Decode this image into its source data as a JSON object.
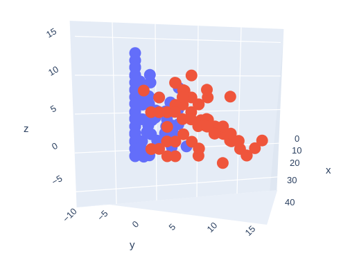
{
  "chart_data": {
    "type": "scatter",
    "dimension": "3d",
    "title": "",
    "xlabel": "x",
    "ylabel": "y",
    "zlabel": "z",
    "x_ticks": [
      "0",
      "10",
      "20",
      "30",
      "40"
    ],
    "y_ticks": [
      "−10",
      "−5",
      "0",
      "5",
      "10",
      "15"
    ],
    "z_ticks": [
      "−5",
      "0",
      "5",
      "10",
      "15"
    ],
    "xlim": [
      -2,
      48
    ],
    "ylim": [
      -10,
      15
    ],
    "zlim": [
      -7,
      17
    ],
    "grid": true,
    "legend": "none",
    "series": [
      {
        "color": "#636efa",
        "x": [
          5,
          8,
          2,
          12,
          6,
          4,
          10,
          15,
          3,
          9,
          7,
          11,
          14,
          6,
          8,
          1,
          13,
          5,
          10,
          16,
          4,
          9,
          12,
          7,
          3,
          11,
          6,
          14,
          2,
          8,
          10,
          5,
          13,
          7,
          9,
          4,
          12,
          6,
          15,
          3,
          8,
          11,
          5,
          10,
          7,
          14,
          2,
          9,
          6,
          12,
          4,
          8,
          11,
          5,
          13,
          7,
          3,
          10,
          6,
          9,
          16,
          18,
          20,
          15,
          12,
          22,
          9,
          11,
          17,
          14,
          19,
          6,
          8,
          13,
          21,
          10,
          16,
          7,
          12,
          18
        ],
        "y": [
          -6,
          -4,
          -7,
          -3,
          -5,
          -6,
          -2,
          -4,
          -8,
          -3,
          -5,
          -1,
          -2,
          -7,
          -4,
          -5,
          -3,
          -6,
          -2,
          -1,
          -8,
          -4,
          -3,
          -6,
          -5,
          -2,
          -4,
          -1,
          -7,
          -3,
          -5,
          -2,
          -4,
          -6,
          -1,
          -3,
          -5,
          -7,
          -2,
          -4,
          0,
          -3,
          -6,
          -1,
          -5,
          -2,
          -4,
          -7,
          -3,
          0,
          -5,
          -1,
          -4,
          -6,
          -2,
          -3,
          -1,
          -5,
          0,
          -2,
          1,
          -1,
          0,
          2,
          1,
          -1,
          3,
          2,
          0,
          1,
          -2,
          2,
          3,
          0,
          1,
          4,
          2,
          3,
          -1,
          1
        ],
        "z": [
          14,
          12,
          11,
          13,
          10,
          12,
          9,
          11,
          10,
          8,
          13,
          7,
          9,
          11,
          6,
          12,
          8,
          4,
          7,
          10,
          3,
          5,
          6,
          9,
          2,
          8,
          5,
          11,
          4,
          7,
          3,
          10,
          6,
          1,
          8,
          5,
          9,
          2,
          7,
          3,
          6,
          0,
          4,
          8,
          1,
          5,
          7,
          2,
          3,
          6,
          9,
          4,
          1,
          5,
          2,
          7,
          3,
          0,
          5,
          1,
          6,
          3,
          8,
          4,
          2,
          5,
          9,
          1,
          6,
          3,
          0,
          7,
          4,
          2,
          5,
          1,
          3,
          6,
          0,
          4
        ]
      },
      {
        "color": "#ef553b",
        "x": [
          20,
          25,
          18,
          30,
          22,
          28,
          24,
          35,
          19,
          26,
          32,
          21,
          29,
          23,
          38,
          27,
          20,
          33,
          25,
          30,
          22,
          36,
          28,
          24,
          31,
          26,
          40,
          23,
          34,
          29,
          21,
          27,
          37,
          25,
          32,
          19,
          28,
          35,
          24,
          30,
          26,
          22,
          33,
          39,
          27,
          31,
          23,
          29,
          36,
          25,
          20,
          28,
          34,
          26,
          32,
          24,
          30,
          22,
          38,
          27
        ],
        "y": [
          0,
          2,
          -1,
          3,
          1,
          4,
          2,
          5,
          -2,
          3,
          6,
          1,
          4,
          2,
          7,
          5,
          0,
          6,
          3,
          8,
          1,
          9,
          4,
          2,
          7,
          5,
          10,
          3,
          8,
          6,
          1,
          4,
          11,
          5,
          9,
          -1,
          6,
          10,
          3,
          7,
          5,
          2,
          8,
          12,
          4,
          9,
          3,
          7,
          11,
          6,
          0,
          5,
          9,
          4,
          8,
          2,
          6,
          1,
          13,
          5
        ],
        "z": [
          8,
          10,
          6,
          9,
          4,
          11,
          7,
          5,
          9,
          3,
          8,
          6,
          2,
          10,
          4,
          7,
          1,
          5,
          9,
          3,
          6,
          2,
          8,
          0,
          4,
          7,
          1,
          5,
          3,
          9,
          2,
          6,
          0,
          4,
          8,
          1,
          5,
          2,
          7,
          3,
          0,
          6,
          4,
          1,
          5,
          2,
          8,
          3,
          0,
          4,
          6,
          1,
          3,
          5,
          -1,
          2,
          4,
          0,
          2,
          1
        ]
      }
    ]
  }
}
